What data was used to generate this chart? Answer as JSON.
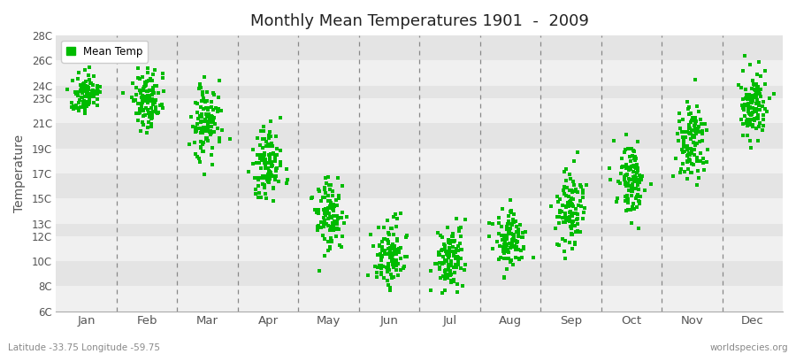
{
  "title": "Monthly Mean Temperatures 1901  -  2009",
  "ylabel": "Temperature",
  "bottom_left_label": "Latitude -33.75 Longitude -59.75",
  "bottom_right_label": "worldspecies.org",
  "legend_label": "Mean Temp",
  "marker_color": "#00BB00",
  "background_color": "#FFFFFF",
  "band_color_dark": "#E0E0E0",
  "band_color_light": "#EFEFEF",
  "ylim": [
    6,
    28
  ],
  "yticks": [
    6,
    8,
    10,
    12,
    13,
    15,
    17,
    19,
    21,
    23,
    24,
    26,
    28
  ],
  "months": [
    "Jan",
    "Feb",
    "Mar",
    "Apr",
    "May",
    "Jun",
    "Jul",
    "Aug",
    "Sep",
    "Oct",
    "Nov",
    "Dec"
  ],
  "num_years": 109,
  "mean_temps": [
    23.3,
    22.8,
    21.0,
    17.5,
    13.5,
    10.5,
    10.0,
    11.5,
    14.0,
    16.5,
    19.5,
    22.5
  ],
  "std_temps": [
    0.8,
    1.2,
    1.5,
    1.6,
    1.5,
    1.3,
    1.3,
    1.3,
    1.5,
    1.5,
    1.6,
    1.3
  ]
}
